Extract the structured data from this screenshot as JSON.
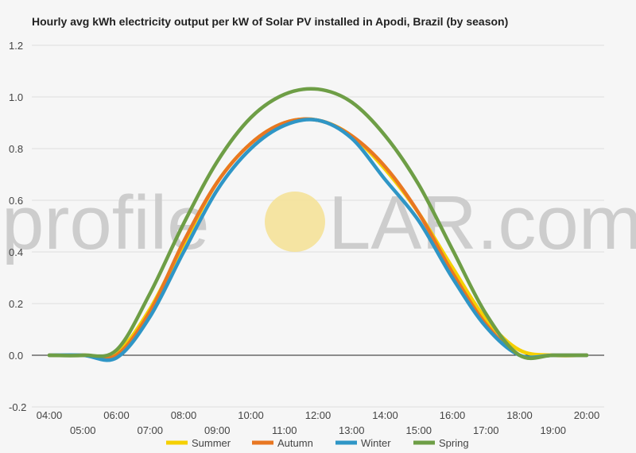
{
  "chart_data": {
    "type": "line",
    "title": "Hourly avg kWh electricity output per kW of Solar PV installed in Apodi, Brazil (by season)",
    "xlabel": "",
    "ylabel": "",
    "ylim": [
      -0.2,
      1.2
    ],
    "yticks": [
      "1.2",
      "1.0",
      "0.8",
      "0.6",
      "0.4",
      "0.2",
      "0.0",
      "-0.2"
    ],
    "ytick_values": [
      1.2,
      1.0,
      0.8,
      0.6,
      0.4,
      0.2,
      0.0,
      -0.2
    ],
    "x": [
      "04:00",
      "05:00",
      "06:00",
      "07:00",
      "08:00",
      "09:00",
      "10:00",
      "11:00",
      "12:00",
      "13:00",
      "14:00",
      "15:00",
      "16:00",
      "17:00",
      "18:00",
      "19:00",
      "20:00"
    ],
    "grid": true,
    "legend_position": "bottom",
    "series": [
      {
        "name": "Summer",
        "color": "#f5d000",
        "values": [
          0.0,
          0.0,
          0.01,
          0.18,
          0.43,
          0.67,
          0.82,
          0.9,
          0.91,
          0.85,
          0.72,
          0.55,
          0.34,
          0.14,
          0.02,
          0.0,
          0.0
        ]
      },
      {
        "name": "Autumn",
        "color": "#e87722",
        "values": [
          0.0,
          0.0,
          0.0,
          0.17,
          0.44,
          0.67,
          0.82,
          0.9,
          0.91,
          0.85,
          0.73,
          0.55,
          0.32,
          0.12,
          0.0,
          0.0,
          0.0
        ]
      },
      {
        "name": "Winter",
        "color": "#2f96c6",
        "values": [
          0.0,
          0.0,
          -0.01,
          0.15,
          0.4,
          0.64,
          0.8,
          0.89,
          0.91,
          0.84,
          0.68,
          0.52,
          0.3,
          0.11,
          0.0,
          0.0,
          0.0
        ]
      },
      {
        "name": "Spring",
        "color": "#6e9e46",
        "values": [
          0.0,
          0.0,
          0.02,
          0.24,
          0.51,
          0.75,
          0.92,
          1.01,
          1.03,
          0.98,
          0.85,
          0.66,
          0.41,
          0.16,
          0.0,
          0.0,
          0.0
        ]
      }
    ]
  },
  "watermark": {
    "left_text": "profile",
    "right_text": "LAR.com",
    "sun_color": "#f5e39a"
  }
}
